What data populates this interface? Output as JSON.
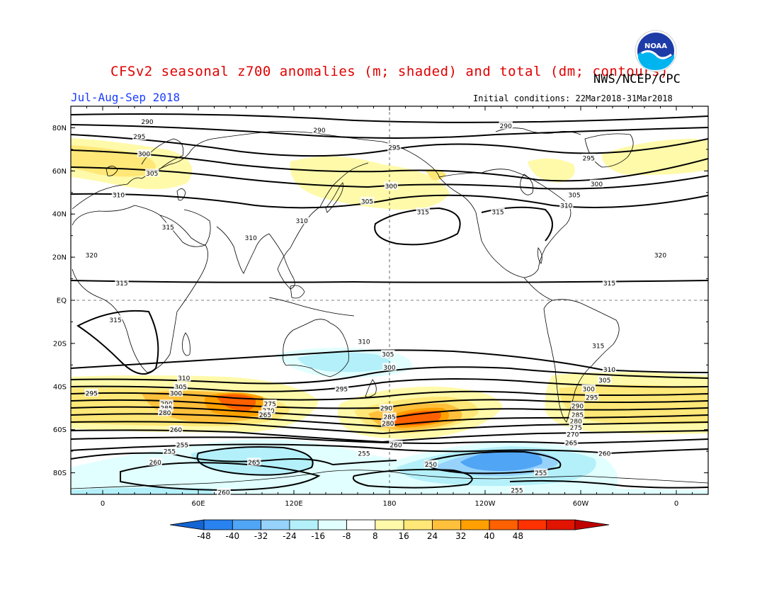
{
  "title": "CFSv2 seasonal z700 anomalies (m; shaded) and total (dm; contours)",
  "season": "Jul-Aug-Sep 2018",
  "agency": "NWS/NCEP/CPC",
  "initial_conditions": "Initial conditions: 22Mar2018-31Mar2018",
  "logo_text": "NOAA",
  "lat_labels": [
    "80N",
    "60N",
    "40N",
    "20N",
    "EQ",
    "20S",
    "40S",
    "60S",
    "80S"
  ],
  "lon_labels": [
    "0",
    "60E",
    "120E",
    "180",
    "120W",
    "60W",
    "0"
  ],
  "colorbar": {
    "labels": [
      "-48",
      "-40",
      "-32",
      "-24",
      "-16",
      "-8",
      "8",
      "16",
      "24",
      "32",
      "40",
      "48"
    ],
    "colors": [
      "#1464d2",
      "#2882f0",
      "#50a5f5",
      "#96d2fa",
      "#b4f0fa",
      "#e1ffff",
      "#ffffff",
      "#fffaaa",
      "#ffe878",
      "#ffc03c",
      "#ffa000",
      "#ff6000",
      "#ff3200",
      "#e11400",
      "#c00000"
    ]
  },
  "contour_labels": [
    {
      "t": "290",
      "lon": 28,
      "lat": 83
    },
    {
      "t": "295",
      "lon": 23,
      "lat": 76
    },
    {
      "t": "300",
      "lon": 26,
      "lat": 68
    },
    {
      "t": "305",
      "lon": 31,
      "lat": 59
    },
    {
      "t": "310",
      "lon": 10,
      "lat": 49
    },
    {
      "t": "315",
      "lon": 41,
      "lat": 34
    },
    {
      "t": "320",
      "lon": -7,
      "lat": 21
    },
    {
      "t": "315",
      "lon": 12,
      "lat": 8
    },
    {
      "t": "315",
      "lon": 8,
      "lat": -9
    },
    {
      "t": "290",
      "lon": 136,
      "lat": 79
    },
    {
      "t": "295",
      "lon": 183,
      "lat": 71
    },
    {
      "t": "300",
      "lon": 181,
      "lat": 53
    },
    {
      "t": "305",
      "lon": 166,
      "lat": 46
    },
    {
      "t": "315",
      "lon": 201,
      "lat": 41
    },
    {
      "t": "310",
      "lon": 125,
      "lat": 37
    },
    {
      "t": "310",
      "lon": 93,
      "lat": 29
    },
    {
      "t": "315",
      "lon": 248,
      "lat": 41
    },
    {
      "t": "290",
      "lon": 253,
      "lat": 81
    },
    {
      "t": "295",
      "lon": 305,
      "lat": 66
    },
    {
      "t": "300",
      "lon": 310,
      "lat": 54
    },
    {
      "t": "305",
      "lon": 296,
      "lat": 49
    },
    {
      "t": "310",
      "lon": 291,
      "lat": 44
    },
    {
      "t": "320",
      "lon": 350,
      "lat": 21
    },
    {
      "t": "315",
      "lon": 318,
      "lat": 8
    },
    {
      "t": "315",
      "lon": 311,
      "lat": -21
    },
    {
      "t": "310",
      "lon": 318,
      "lat": -32
    },
    {
      "t": "305",
      "lon": 315,
      "lat": -37
    },
    {
      "t": "300",
      "lon": 305,
      "lat": -41
    },
    {
      "t": "295",
      "lon": 307,
      "lat": -45
    },
    {
      "t": "290",
      "lon": 298,
      "lat": -49
    },
    {
      "t": "285",
      "lon": 298,
      "lat": -53
    },
    {
      "t": "280",
      "lon": 297,
      "lat": -56
    },
    {
      "t": "275",
      "lon": 297,
      "lat": -59
    },
    {
      "t": "270",
      "lon": 295,
      "lat": -62
    },
    {
      "t": "265",
      "lon": 294,
      "lat": -66
    },
    {
      "t": "260",
      "lon": 315,
      "lat": -71
    },
    {
      "t": "255",
      "lon": 275,
      "lat": -80
    },
    {
      "t": "255",
      "lon": 260,
      "lat": -88
    },
    {
      "t": "310",
      "lon": 51,
      "lat": -36
    },
    {
      "t": "305",
      "lon": 49,
      "lat": -40
    },
    {
      "t": "300",
      "lon": 46,
      "lat": -43
    },
    {
      "t": "295",
      "lon": -7,
      "lat": -43
    },
    {
      "t": "290",
      "lon": 40,
      "lat": -48
    },
    {
      "t": "285",
      "lon": 40,
      "lat": -50
    },
    {
      "t": "280",
      "lon": 39,
      "lat": -52
    },
    {
      "t": "275",
      "lon": 105,
      "lat": -48
    },
    {
      "t": "270",
      "lon": 104,
      "lat": -51
    },
    {
      "t": "265",
      "lon": 102,
      "lat": -53
    },
    {
      "t": "260",
      "lon": 46,
      "lat": -60
    },
    {
      "t": "255",
      "lon": 50,
      "lat": -67
    },
    {
      "t": "255",
      "lon": 42,
      "lat": -70
    },
    {
      "t": "260",
      "lon": 33,
      "lat": -75
    },
    {
      "t": "265",
      "lon": 95,
      "lat": -75
    },
    {
      "t": "260",
      "lon": 76,
      "lat": -89
    },
    {
      "t": "295",
      "lon": 150,
      "lat": -41
    },
    {
      "t": "310",
      "lon": 164,
      "lat": -19
    },
    {
      "t": "305",
      "lon": 179,
      "lat": -25
    },
    {
      "t": "300",
      "lon": 180,
      "lat": -31
    },
    {
      "t": "290",
      "lon": 178,
      "lat": -50
    },
    {
      "t": "285",
      "lon": 180,
      "lat": -54
    },
    {
      "t": "280",
      "lon": 179,
      "lat": -57
    },
    {
      "t": "260",
      "lon": 184,
      "lat": -67
    },
    {
      "t": "255",
      "lon": 164,
      "lat": -71
    },
    {
      "t": "250",
      "lon": 206,
      "lat": -76
    }
  ]
}
